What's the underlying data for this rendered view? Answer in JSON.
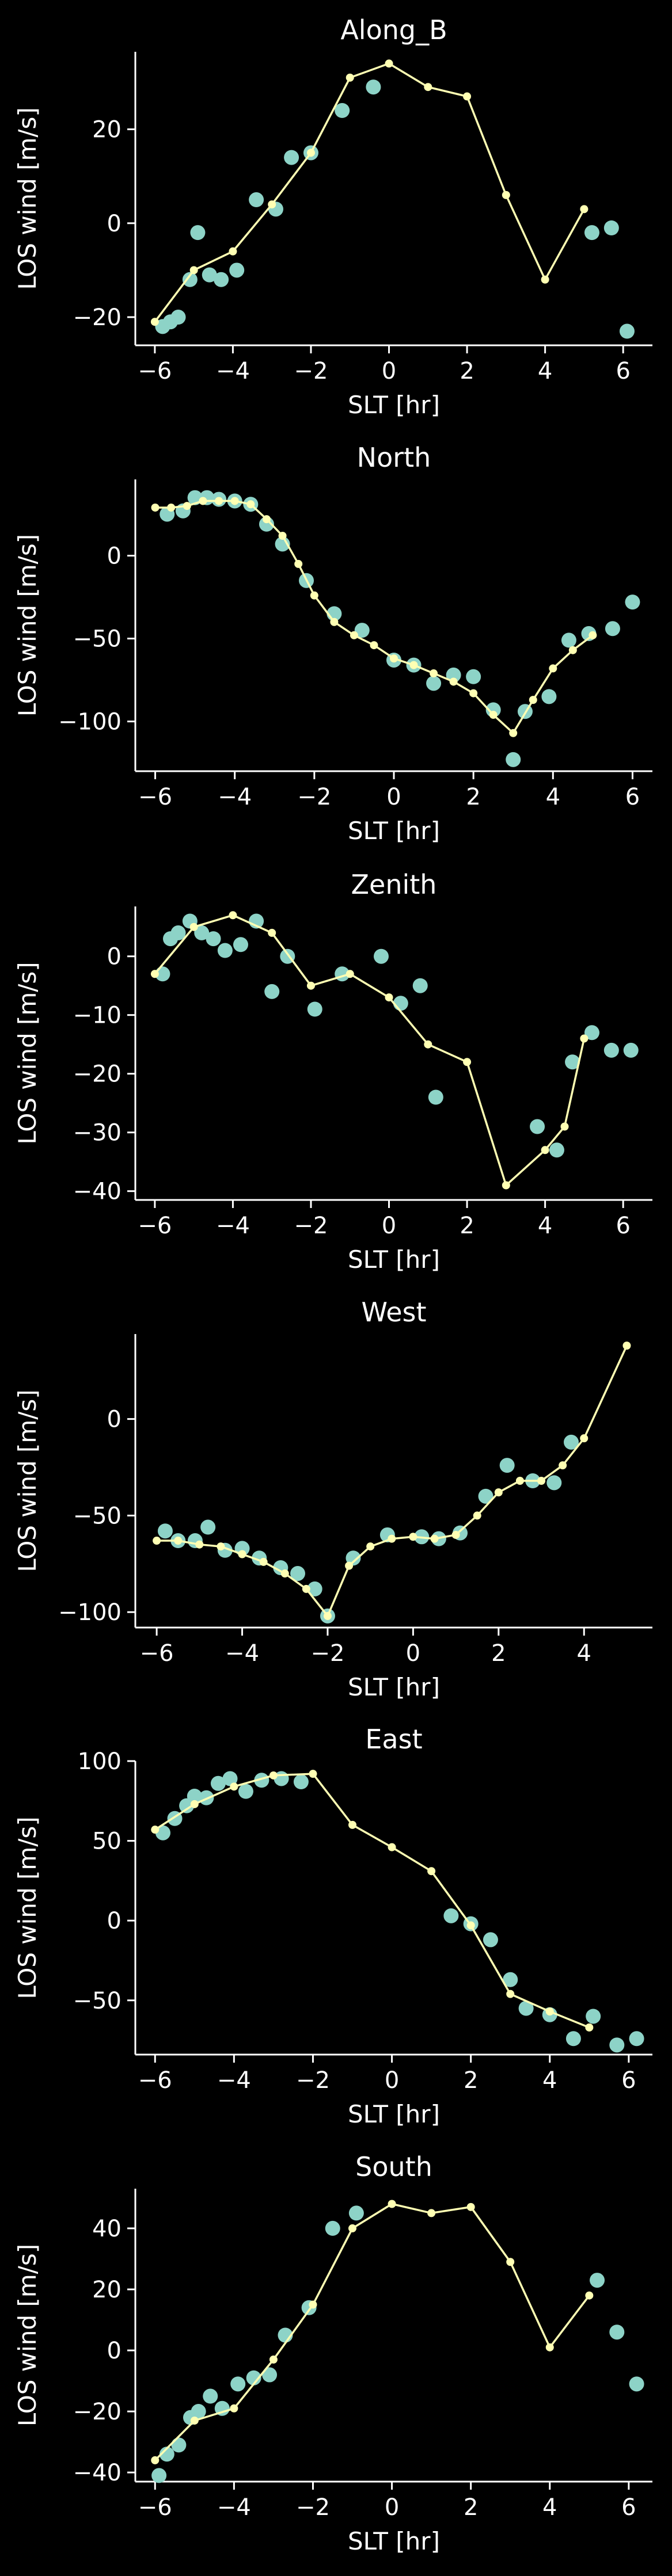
{
  "colors": {
    "background": "#000000",
    "axes": "#ffffff",
    "text": "#ffffff",
    "scatter": "#8dd3c7",
    "line": "#ffffb3"
  },
  "chart_data": [
    {
      "type": "scatter+line",
      "title": "Along_B",
      "xlabel": "SLT [hr]",
      "ylabel": "LOS wind [m/s]",
      "xlim": [
        -6.5,
        6.75
      ],
      "ylim": [
        -26,
        36.5
      ],
      "xticks": [
        -6,
        -4,
        -2,
        0,
        2,
        4,
        6
      ],
      "yticks": [
        -20,
        0,
        20
      ],
      "scatter": {
        "x": [
          -5.8,
          -5.6,
          -5.4,
          -5.1,
          -4.9,
          -4.6,
          -4.3,
          -3.9,
          -3.4,
          -2.9,
          -2.5,
          -2.0,
          -1.2,
          -0.4,
          5.2,
          5.7,
          6.1
        ],
        "y": [
          -22,
          -21,
          -20,
          -12,
          -2,
          -11,
          -12,
          -10,
          5,
          3,
          14,
          15,
          24,
          29,
          -2,
          -1,
          -23
        ]
      },
      "line": {
        "x": [
          -6,
          -5,
          -4,
          -3,
          -2,
          -1,
          0,
          1,
          2,
          3,
          4,
          5
        ],
        "y": [
          -21,
          -10,
          -6,
          4,
          15,
          31,
          34,
          29,
          27,
          6,
          -12,
          3
        ]
      }
    },
    {
      "type": "scatter+line",
      "title": "North",
      "xlabel": "SLT [hr]",
      "ylabel": "LOS wind [m/s]",
      "xlim": [
        -6.5,
        6.5
      ],
      "ylim": [
        -130,
        46
      ],
      "xticks": [
        -6,
        -4,
        -2,
        0,
        2,
        4,
        6
      ],
      "yticks": [
        -100,
        -50,
        0
      ],
      "scatter": {
        "x": [
          -5.7,
          -5.3,
          -5.0,
          -4.7,
          -4.4,
          -4.0,
          -3.6,
          -3.2,
          -2.8,
          -2.2,
          -1.5,
          -0.8,
          0,
          0.5,
          1.0,
          1.5,
          2.0,
          2.5,
          3.0,
          3.3,
          3.9,
          4.4,
          4.9,
          5.5,
          6.0
        ],
        "y": [
          25,
          27,
          35,
          35,
          34,
          33,
          31,
          19,
          7,
          -15,
          -35,
          -45,
          -63,
          -66,
          -77,
          -72,
          -73,
          -93,
          -123,
          -94,
          -85,
          -51,
          -47,
          -44,
          -28
        ]
      },
      "line": {
        "x": [
          -6,
          -5.6,
          -5.2,
          -4.8,
          -4.4,
          -4.0,
          -3.6,
          -3.2,
          -2.8,
          -2.4,
          -2.0,
          -1.5,
          -1.0,
          -0.5,
          0,
          0.5,
          1.0,
          1.5,
          2.0,
          2.5,
          3.0,
          3.5,
          4.0,
          4.5,
          5.0
        ],
        "y": [
          29,
          29,
          30,
          33,
          33,
          33,
          31,
          22,
          12,
          -5,
          -24,
          -40,
          -48,
          -54,
          -62,
          -66,
          -71,
          -76,
          -83,
          -96,
          -107,
          -87,
          -68,
          -57,
          -48
        ]
      }
    },
    {
      "type": "scatter+line",
      "title": "Zenith",
      "xlabel": "SLT [hr]",
      "ylabel": "LOS wind [m/s]",
      "xlim": [
        -6.5,
        6.75
      ],
      "ylim": [
        -41.5,
        8.5
      ],
      "xticks": [
        -6,
        -4,
        -2,
        0,
        2,
        4,
        6
      ],
      "yticks": [
        -40,
        -30,
        -20,
        -10,
        0
      ],
      "scatter": {
        "x": [
          -5.8,
          -5.6,
          -5.4,
          -5.1,
          -4.8,
          -4.5,
          -4.2,
          -3.8,
          -3.4,
          -3.0,
          -2.6,
          -1.9,
          -1.2,
          -0.2,
          0.3,
          0.8,
          1.2,
          3.8,
          4.3,
          4.7,
          5.2,
          5.7,
          6.2
        ],
        "y": [
          -3,
          3,
          4,
          6,
          4,
          3,
          1,
          2,
          6,
          -6,
          0,
          -9,
          -3,
          0,
          -8,
          -5,
          -24,
          -29,
          -33,
          -18,
          -13,
          -16,
          -16
        ]
      },
      "line": {
        "x": [
          -6,
          -5,
          -4,
          -3,
          -2,
          -1,
          0,
          1,
          2,
          3,
          4,
          4.5,
          5
        ],
        "y": [
          -3,
          5,
          7,
          4,
          -5,
          -3,
          -7,
          -15,
          -18,
          -39,
          -33,
          -29,
          -14
        ]
      }
    },
    {
      "type": "scatter+line",
      "title": "West",
      "xlabel": "SLT [hr]",
      "ylabel": "LOS wind [m/s]",
      "xlim": [
        -6.5,
        5.6
      ],
      "ylim": [
        -108,
        44
      ],
      "xticks": [
        -6,
        -4,
        -2,
        0,
        2,
        4
      ],
      "yticks": [
        -100,
        -50,
        0
      ],
      "scatter": {
        "x": [
          -5.8,
          -5.5,
          -5.1,
          -4.8,
          -4.4,
          -4.0,
          -3.6,
          -3.1,
          -2.7,
          -2.3,
          -2.0,
          -1.4,
          -0.6,
          0.2,
          0.6,
          1.1,
          1.7,
          2.2,
          2.8,
          3.3,
          3.7
        ],
        "y": [
          -58,
          -63,
          -63,
          -56,
          -68,
          -67,
          -72,
          -77,
          -80,
          -88,
          -102,
          -72,
          -60,
          -61,
          -62,
          -59,
          -40,
          -24,
          -32,
          -33,
          -12
        ]
      },
      "line": {
        "x": [
          -6,
          -5.5,
          -5,
          -4.5,
          -4,
          -3.5,
          -3,
          -2.5,
          -2,
          -1.5,
          -1,
          -0.5,
          0,
          0.5,
          1,
          1.5,
          2,
          2.5,
          3,
          3.5,
          4,
          5
        ],
        "y": [
          -63,
          -63,
          -65,
          -66,
          -70,
          -74,
          -80,
          -88,
          -102,
          -76,
          -66,
          -62,
          -61,
          -62,
          -60,
          -50,
          -38,
          -32,
          -32,
          -24,
          -10,
          38
        ]
      }
    },
    {
      "type": "scatter+line",
      "title": "East",
      "xlabel": "SLT [hr]",
      "ylabel": "LOS wind [m/s]",
      "xlim": [
        -6.5,
        6.6
      ],
      "ylim": [
        -84,
        100
      ],
      "xticks": [
        -6,
        -4,
        -2,
        0,
        2,
        4,
        6
      ],
      "yticks": [
        -50,
        0,
        50,
        100
      ],
      "scatter": {
        "x": [
          -5.8,
          -5.5,
          -5.2,
          -5.0,
          -4.7,
          -4.4,
          -4.1,
          -3.7,
          -3.3,
          -2.8,
          -2.3,
          1.5,
          2.0,
          2.5,
          3.0,
          3.4,
          4.0,
          4.6,
          5.1,
          5.7,
          6.2
        ],
        "y": [
          55,
          64,
          72,
          78,
          77,
          86,
          89,
          81,
          88,
          89,
          87,
          3,
          -2,
          -12,
          -37,
          -55,
          -59,
          -74,
          -60,
          -78,
          -74
        ]
      },
      "line": {
        "x": [
          -6,
          -5,
          -4,
          -3,
          -2,
          -1,
          0,
          1,
          2,
          3,
          4,
          5
        ],
        "y": [
          57,
          73,
          84,
          91,
          92,
          60,
          46,
          31,
          -3,
          -46,
          -57,
          -67
        ]
      }
    },
    {
      "type": "scatter+line",
      "title": "South",
      "xlabel": "SLT [hr]",
      "ylabel": "LOS wind [m/s]",
      "xlim": [
        -6.5,
        6.6
      ],
      "ylim": [
        -43,
        53
      ],
      "xticks": [
        -6,
        -4,
        -2,
        0,
        2,
        4,
        6
      ],
      "yticks": [
        -40,
        -20,
        0,
        20,
        40
      ],
      "scatter": {
        "x": [
          -5.9,
          -5.7,
          -5.4,
          -5.1,
          -4.9,
          -4.6,
          -4.3,
          -3.9,
          -3.5,
          -3.1,
          -2.7,
          -2.1,
          -1.5,
          -0.9,
          5.2,
          5.7,
          6.2
        ],
        "y": [
          -41,
          -34,
          -31,
          -22,
          -20,
          -15,
          -19,
          -11,
          -9,
          -8,
          5,
          14,
          40,
          45,
          23,
          6,
          -11
        ]
      },
      "line": {
        "x": [
          -6,
          -5,
          -4,
          -3,
          -2,
          -1,
          0,
          1,
          2,
          3,
          4,
          5
        ],
        "y": [
          -36,
          -23,
          -19,
          -3,
          15,
          40,
          48,
          45,
          47,
          29,
          1,
          18
        ]
      }
    }
  ]
}
